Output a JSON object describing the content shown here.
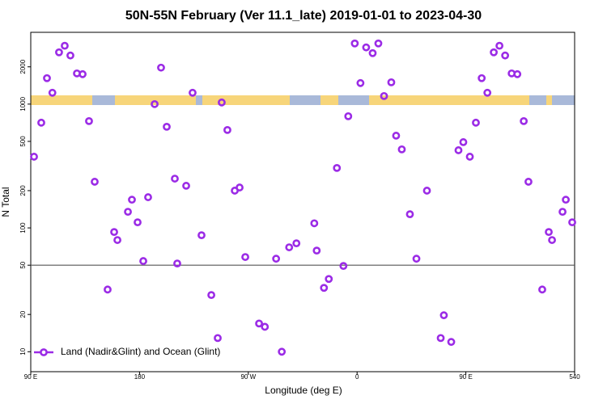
{
  "chart_data": {
    "type": "scatter",
    "title": "50N-55N February (Ver 11.1_late)   2019-01-01 to 2023-04-30",
    "x_label": "Longitude (deg E)",
    "y_label": "N Total",
    "log_y": true,
    "xlim": [
      90,
      540
    ],
    "xticks": [
      {
        "value": 90,
        "label": "90 E"
      },
      180,
      {
        "value": 270,
        "label": "90 W"
      },
      {
        "value": 360,
        "label": "0"
      },
      {
        "value": 450,
        "label": "90 E"
      },
      540
    ],
    "ylim": [
      6.9,
      3800
    ],
    "yticks": [
      10,
      20,
      50,
      100,
      200,
      500,
      1000,
      2000
    ],
    "reference_line": 50,
    "legend": "bottom-left",
    "x": [
      92.7,
      98.7,
      103.4,
      107.9,
      113.4,
      118.1,
      122.8,
      128.2,
      132.9,
      138.2,
      142.9,
      153.6,
      159.0,
      161.7,
      170.4,
      173.7,
      178.4,
      183.1,
      187.1,
      192.5,
      197.8,
      202.5,
      209.2,
      211.2,
      218.6,
      223.9,
      231.3,
      239.4,
      244.7,
      248.0,
      252.7,
      258.8,
      262.8,
      267.5,
      278.9,
      283.7,
      293.0,
      297.7,
      303.8,
      309.8,
      324.6,
      326.6,
      332.6,
      336.6,
      343.3,
      348.7,
      352.7,
      358.1,
      362.8,
      367.5,
      372.9,
      377.6,
      382.3,
      388.3,
      392.3,
      397.0,
      403.7,
      409.1,
      417.8,
      429.2,
      431.8,
      437.9,
      443.9,
      447.9,
      453.3,
      458.3,
      463.1,
      467.8,
      473.1,
      477.8,
      482.5,
      487.9,
      492.6,
      497.9,
      501.8,
      513.2,
      518.6,
      521.3,
      530.0,
      532.7,
      538.0
    ],
    "series": [
      {
        "name": "Land (Nadir&Glint) and Ocean (Glint)",
        "color": "#9b2be6",
        "values": [
          376,
          708,
          1620,
          1235,
          2620,
          2960,
          2470,
          1770,
          1745,
          729,
          236,
          31.8,
          92.7,
          79.8,
          135,
          169,
          111,
          54,
          177,
          1000,
          1970,
          656,
          250,
          51.6,
          219,
          1235,
          87.3,
          28.7,
          12.9,
          1031,
          618,
          200,
          212,
          58.2,
          16.9,
          15.9,
          56.4,
          10,
          69.7,
          75.1,
          109,
          65.6,
          32.8,
          38.7,
          305,
          49.3,
          798,
          3090,
          1479,
          2870,
          2580,
          3090,
          1162,
          1500,
          556,
          431,
          129,
          56.4,
          200,
          12.9,
          19.7,
          12.0,
          424,
          493,
          376,
          708,
          1620,
          1235,
          2620,
          2960,
          2470,
          1770,
          1745,
          729,
          236,
          31.8,
          92.7,
          79.8,
          135,
          169,
          111
        ]
      }
    ]
  }
}
